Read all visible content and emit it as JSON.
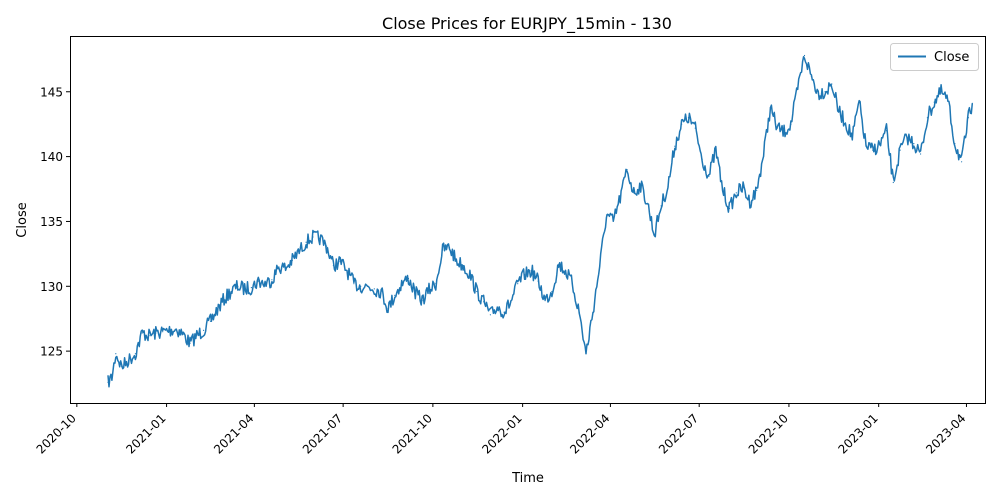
{
  "chart_data": {
    "type": "line",
    "title": "Close Prices for EURJPY_15min - 130",
    "xlabel": "Time",
    "ylabel": "Close",
    "legend": {
      "placement": "top-right",
      "entries": [
        "Close"
      ]
    },
    "grid": false,
    "xlim": [
      "2020-09-24",
      "2023-04-20"
    ],
    "ylim": [
      121.0,
      149.3
    ],
    "x_tick_labels": [
      "2020-10",
      "2021-01",
      "2021-04",
      "2021-07",
      "2021-10",
      "2022-01",
      "2022-04",
      "2022-07",
      "2022-10",
      "2023-01",
      "2023-04"
    ],
    "x_ticks": [
      "2020-10-01",
      "2021-01-01",
      "2021-04-01",
      "2021-07-01",
      "2021-10-01",
      "2022-01-01",
      "2022-04-01",
      "2022-07-01",
      "2022-10-01",
      "2023-01-01",
      "2023-04-01"
    ],
    "y_tick_labels": [
      "125",
      "130",
      "135",
      "140",
      "145"
    ],
    "y_ticks": [
      125,
      130,
      135,
      140,
      145
    ],
    "series": [
      {
        "name": "Close",
        "color": "#1f77b4",
        "x": [
          "2020-11-02",
          "2020-11-06",
          "2020-11-10",
          "2020-11-16",
          "2020-11-23",
          "2020-11-30",
          "2020-12-07",
          "2020-12-14",
          "2020-12-21",
          "2020-12-28",
          "2021-01-04",
          "2021-01-11",
          "2021-01-18",
          "2021-01-25",
          "2021-02-01",
          "2021-02-08",
          "2021-02-15",
          "2021-02-22",
          "2021-03-01",
          "2021-03-08",
          "2021-03-15",
          "2021-03-22",
          "2021-03-29",
          "2021-04-05",
          "2021-04-12",
          "2021-04-19",
          "2021-04-26",
          "2021-05-03",
          "2021-05-10",
          "2021-05-17",
          "2021-05-24",
          "2021-05-31",
          "2021-06-07",
          "2021-06-14",
          "2021-06-21",
          "2021-06-28",
          "2021-07-05",
          "2021-07-12",
          "2021-07-19",
          "2021-07-26",
          "2021-08-02",
          "2021-08-09",
          "2021-08-16",
          "2021-08-23",
          "2021-08-30",
          "2021-09-06",
          "2021-09-13",
          "2021-09-20",
          "2021-09-27",
          "2021-10-04",
          "2021-10-11",
          "2021-10-18",
          "2021-10-25",
          "2021-11-01",
          "2021-11-08",
          "2021-11-15",
          "2021-11-22",
          "2021-11-29",
          "2021-12-06",
          "2021-12-13",
          "2021-12-20",
          "2021-12-27",
          "2022-01-03",
          "2022-01-10",
          "2022-01-17",
          "2022-01-24",
          "2022-01-31",
          "2022-02-07",
          "2022-02-14",
          "2022-02-21",
          "2022-02-28",
          "2022-03-07",
          "2022-03-14",
          "2022-03-21",
          "2022-03-28",
          "2022-04-04",
          "2022-04-11",
          "2022-04-18",
          "2022-04-25",
          "2022-05-02",
          "2022-05-09",
          "2022-05-16",
          "2022-05-23",
          "2022-05-30",
          "2022-06-06",
          "2022-06-13",
          "2022-06-20",
          "2022-06-27",
          "2022-07-04",
          "2022-07-11",
          "2022-07-18",
          "2022-07-25",
          "2022-08-01",
          "2022-08-08",
          "2022-08-15",
          "2022-08-22",
          "2022-08-29",
          "2022-09-05",
          "2022-09-12",
          "2022-09-19",
          "2022-09-26",
          "2022-10-03",
          "2022-10-10",
          "2022-10-17",
          "2022-10-24",
          "2022-10-31",
          "2022-11-07",
          "2022-11-14",
          "2022-11-21",
          "2022-11-28",
          "2022-12-05",
          "2022-12-12",
          "2022-12-19",
          "2022-12-26",
          "2023-01-02",
          "2023-01-09",
          "2023-01-16",
          "2023-01-23",
          "2023-01-30",
          "2023-02-06",
          "2023-02-13",
          "2023-02-20",
          "2023-02-27",
          "2023-03-06",
          "2023-03-13",
          "2023-03-20",
          "2023-03-27",
          "2023-04-03",
          "2023-04-07"
        ],
        "y": [
          122.6,
          123.0,
          124.8,
          123.8,
          124.3,
          124.8,
          126.4,
          126.2,
          126.4,
          126.5,
          126.6,
          126.7,
          126.3,
          125.6,
          126.2,
          126.6,
          127.3,
          128.2,
          129.0,
          129.6,
          130.0,
          129.8,
          129.9,
          130.4,
          130.2,
          130.5,
          131.5,
          131.4,
          132.0,
          132.7,
          133.4,
          133.8,
          133.7,
          133.1,
          131.6,
          131.9,
          131.2,
          130.2,
          130.0,
          130.0,
          129.8,
          129.6,
          128.3,
          129.3,
          130.2,
          130.6,
          129.5,
          128.9,
          129.7,
          130.2,
          132.8,
          133.0,
          132.0,
          131.6,
          130.9,
          129.6,
          128.8,
          127.8,
          128.4,
          128.0,
          128.8,
          130.2,
          130.9,
          131.2,
          130.4,
          128.9,
          129.6,
          131.7,
          131.2,
          130.2,
          128.0,
          124.8,
          128.0,
          131.6,
          135.5,
          135.0,
          136.8,
          139.0,
          137.2,
          137.8,
          136.4,
          134.0,
          136.2,
          137.7,
          140.8,
          142.5,
          143.0,
          142.2,
          139.8,
          138.5,
          140.5,
          137.5,
          136.0,
          137.2,
          137.6,
          136.5,
          137.4,
          140.2,
          143.8,
          142.2,
          141.9,
          142.5,
          145.2,
          147.8,
          146.2,
          144.9,
          145.0,
          145.6,
          143.5,
          142.6,
          141.5,
          144.2,
          140.8,
          140.5,
          140.9,
          142.0,
          138.0,
          140.5,
          141.5,
          141.0,
          140.2,
          143.0,
          144.2,
          145.0,
          144.3,
          141.0,
          139.6,
          143.0,
          144.1
        ]
      }
    ]
  }
}
